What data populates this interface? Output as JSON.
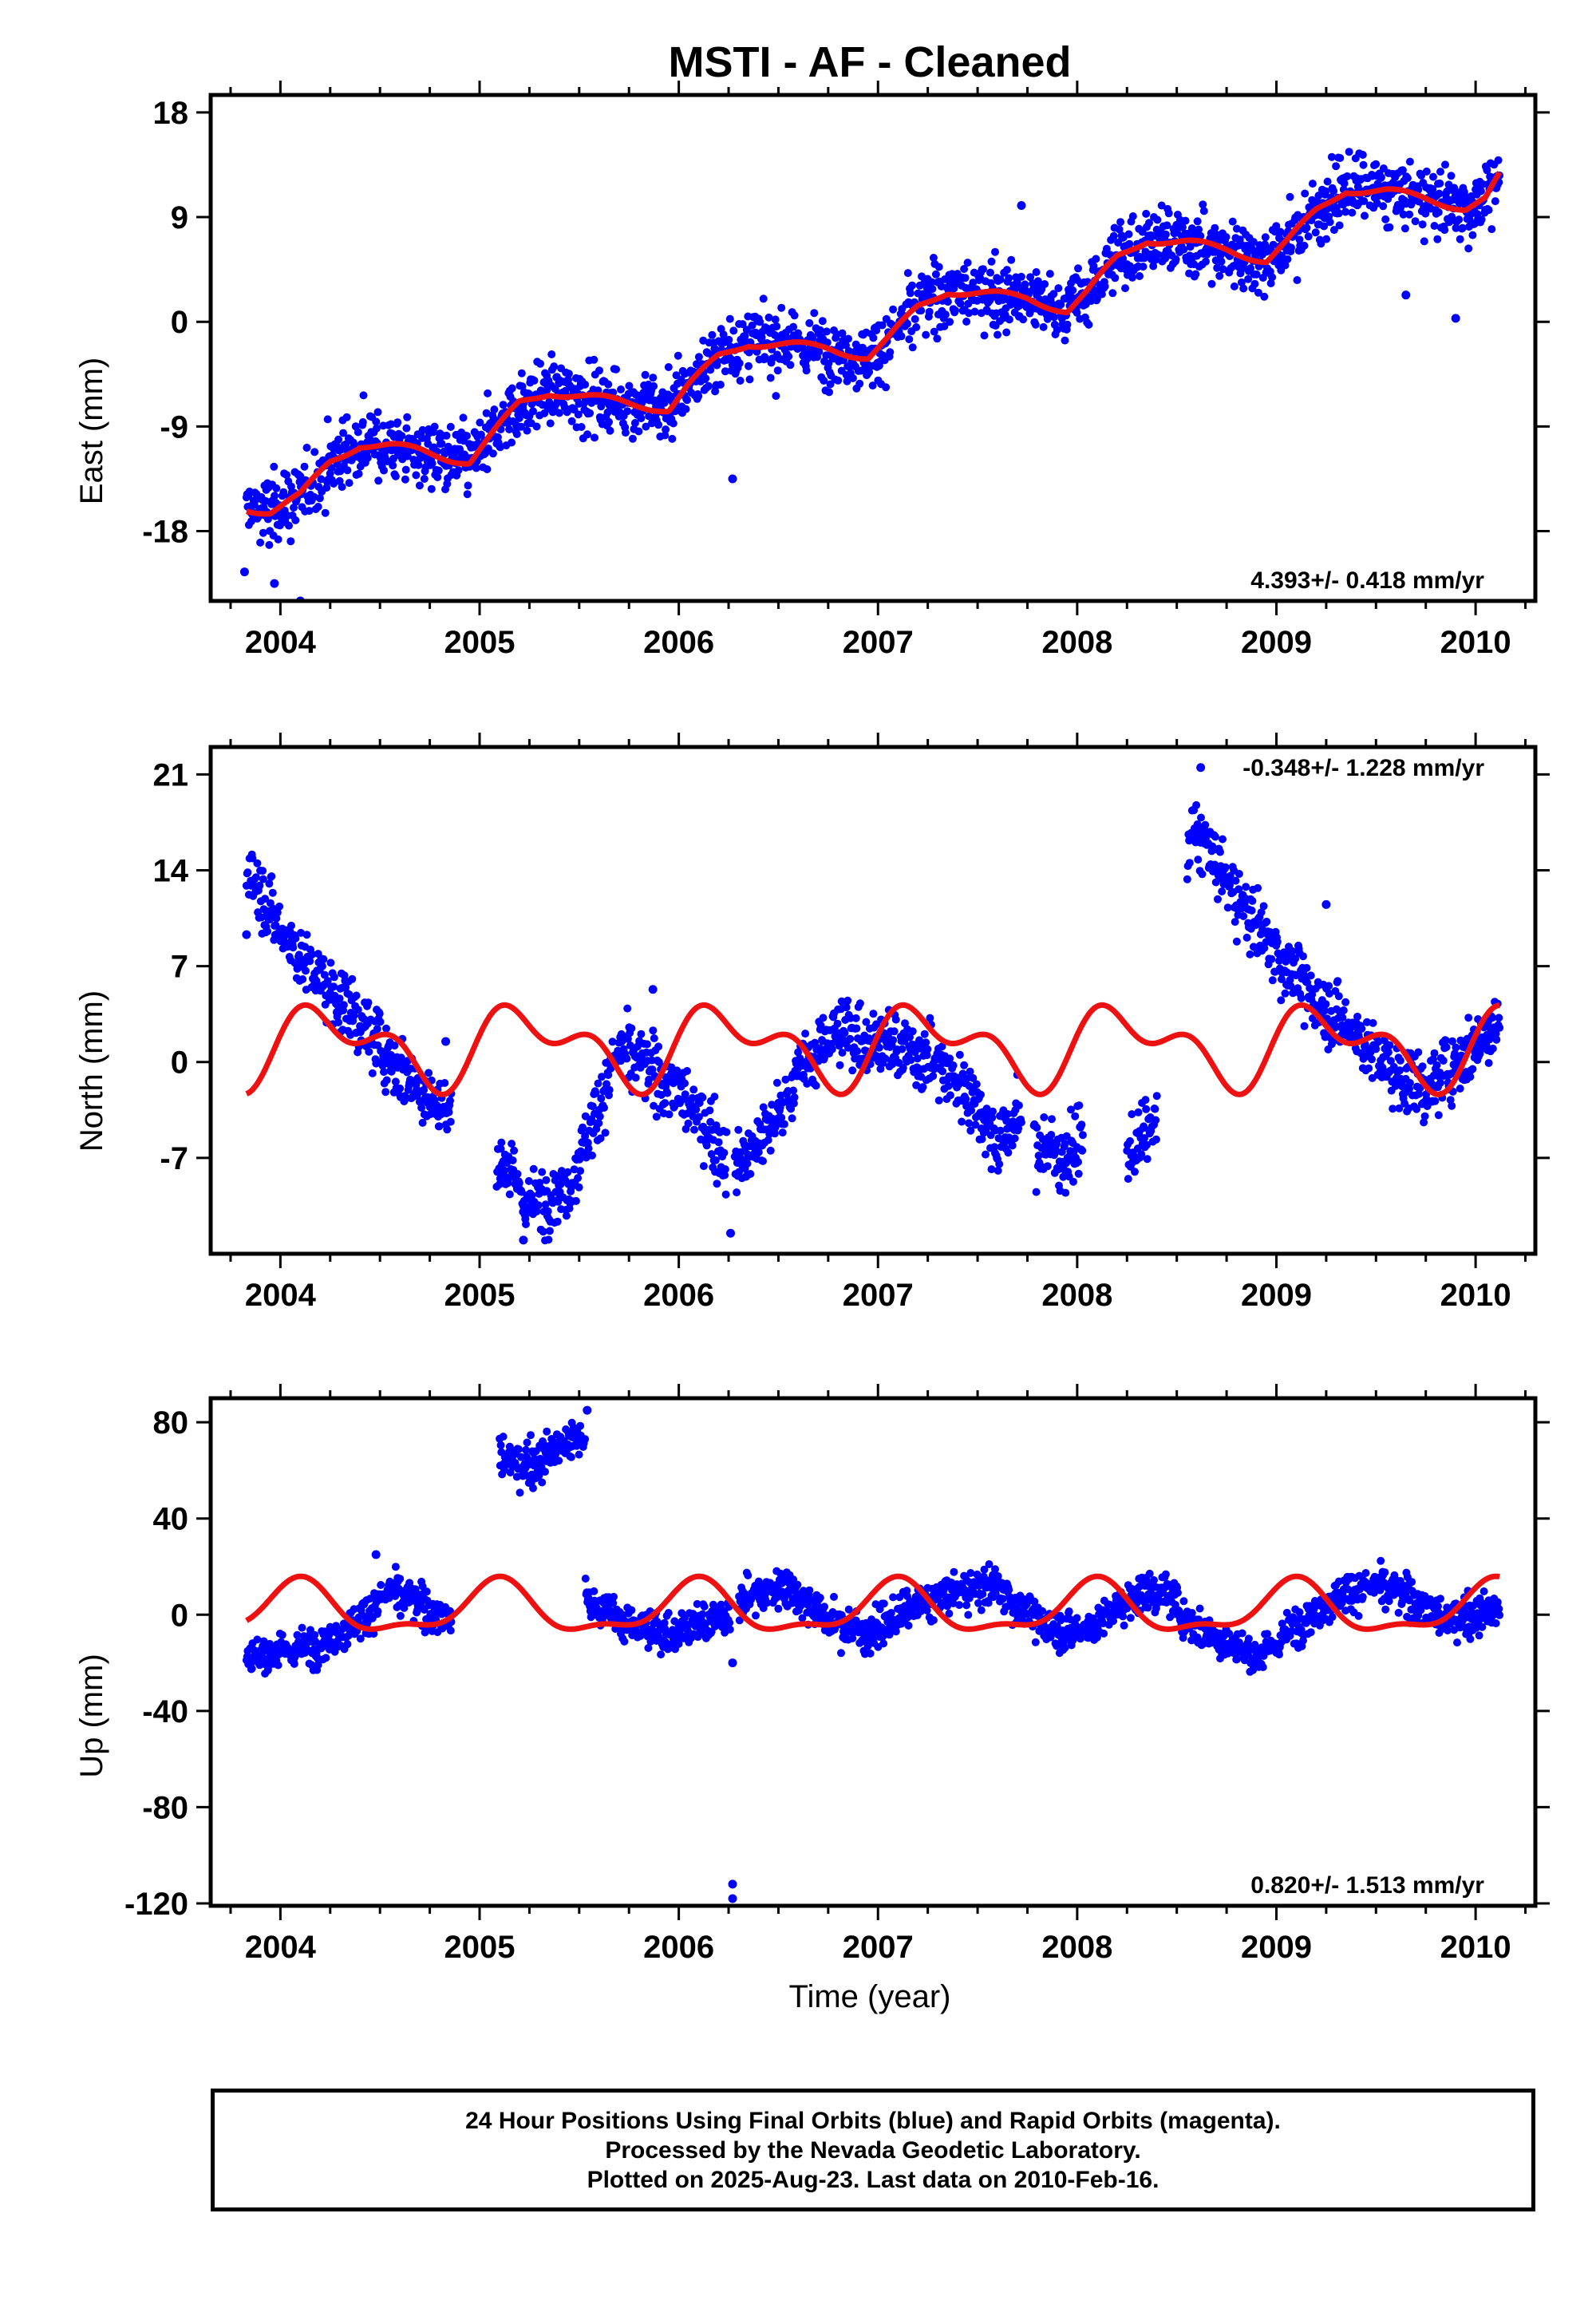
{
  "title": "MSTI  - AF - Cleaned",
  "xlabel": "Time (year)",
  "colors": {
    "points": "#0000ff",
    "fit": "#ee1111",
    "axis": "#000000"
  },
  "caption": [
    "24 Hour Positions Using Final Orbits (blue) and Rapid Orbits (magenta).",
    "Processed by the Nevada Geodetic Laboratory.",
    "Plotted on 2025-Aug-23. Last data on 2010-Feb-16."
  ],
  "chart_data": [
    {
      "type": "scatter",
      "ylabel": "East (mm)",
      "rate": "4.393+/- 0.418 mm/yr",
      "rate_position": "bottom-right",
      "xlim": [
        2003.65,
        2010.3
      ],
      "ylim": [
        -24,
        19.5
      ],
      "xticks": [
        2004,
        2005,
        2006,
        2007,
        2008,
        2009,
        2010
      ],
      "yticks": [
        18,
        9,
        0,
        -9,
        -18
      ],
      "ytick_labels": [
        "18",
        "9",
        "0",
        "-9",
        "-18"
      ],
      "grid": false,
      "data_range": [
        2003.83,
        2010.12
      ],
      "gaps": [],
      "knots": [
        [
          2003.83,
          -16
        ],
        [
          2003.95,
          -16.3
        ],
        [
          2004.1,
          -15
        ],
        [
          2004.25,
          -12
        ],
        [
          2004.4,
          -10.5
        ],
        [
          2004.55,
          -10.7
        ],
        [
          2004.7,
          -11.1
        ],
        [
          2004.85,
          -11.7
        ],
        [
          2004.95,
          -12
        ],
        [
          2005.05,
          -10
        ],
        [
          2005.2,
          -7
        ],
        [
          2005.35,
          -6
        ],
        [
          2005.55,
          -6.5
        ],
        [
          2005.75,
          -7
        ],
        [
          2005.95,
          -7.5
        ],
        [
          2006.05,
          -5.5
        ],
        [
          2006.2,
          -3
        ],
        [
          2006.35,
          -1.8
        ],
        [
          2006.55,
          -2
        ],
        [
          2006.75,
          -2.3
        ],
        [
          2006.95,
          -3
        ],
        [
          2007.05,
          -1.5
        ],
        [
          2007.2,
          1.2
        ],
        [
          2007.35,
          2.7
        ],
        [
          2007.55,
          2.4
        ],
        [
          2007.75,
          2
        ],
        [
          2007.95,
          1
        ],
        [
          2008.05,
          2.5
        ],
        [
          2008.2,
          5.5
        ],
        [
          2008.35,
          7.1
        ],
        [
          2008.55,
          6.8
        ],
        [
          2008.75,
          6.2
        ],
        [
          2008.95,
          5.3
        ],
        [
          2009.05,
          6.8
        ],
        [
          2009.2,
          9.5
        ],
        [
          2009.35,
          11.4
        ],
        [
          2009.55,
          11.2
        ],
        [
          2009.75,
          10.6
        ],
        [
          2009.95,
          9.8
        ],
        [
          2010.05,
          10.5
        ],
        [
          2010.12,
          12.5
        ]
      ],
      "noise": 1.4,
      "outliers": [
        [
          2003.82,
          -21.5
        ],
        [
          2003.97,
          -22.5
        ],
        [
          2004.1,
          -24
        ],
        [
          2006.27,
          -13.5
        ],
        [
          2007.72,
          10
        ],
        [
          2009.9,
          0.3
        ],
        [
          2009.65,
          2.3
        ]
      ]
    },
    {
      "type": "scatter",
      "ylabel": "North (mm)",
      "rate": "-0.348+/- 1.228 mm/yr",
      "rate_position": "top-right",
      "xlim": [
        2003.65,
        2010.3
      ],
      "ylim": [
        -14,
        23
      ],
      "xticks": [
        2004,
        2005,
        2006,
        2007,
        2008,
        2009,
        2010
      ],
      "yticks": [
        21,
        14,
        7,
        0,
        -7
      ],
      "ytick_labels": [
        "21",
        "14",
        "7",
        "0",
        "-7"
      ],
      "grid": false,
      "data_range": [
        2003.83,
        2010.12
      ],
      "gaps": [
        [
          2004.86,
          2005.08
        ],
        [
          2006.24,
          2006.28
        ],
        [
          2007.72,
          2007.78
        ],
        [
          2008.03,
          2008.25
        ],
        [
          2008.4,
          2008.55
        ]
      ],
      "knots": [
        [
          2003.83,
          14.5
        ],
        [
          2004.0,
          9.5
        ],
        [
          2004.2,
          6
        ],
        [
          2004.4,
          3
        ],
        [
          2004.6,
          -0.5
        ],
        [
          2004.85,
          -4
        ],
        [
          2005.1,
          -7
        ],
        [
          2005.25,
          -10.5
        ],
        [
          2005.45,
          -9
        ],
        [
          2005.6,
          -3
        ],
        [
          2005.7,
          1
        ],
        [
          2005.8,
          0
        ],
        [
          2006.0,
          -2
        ],
        [
          2006.15,
          -5
        ],
        [
          2006.28,
          -8
        ],
        [
          2006.45,
          -5
        ],
        [
          2006.6,
          -1
        ],
        [
          2006.75,
          2
        ],
        [
          2006.9,
          2
        ],
        [
          2007.1,
          1
        ],
        [
          2007.3,
          0
        ],
        [
          2007.5,
          -3
        ],
        [
          2007.6,
          -6
        ],
        [
          2007.7,
          -4
        ],
        [
          2007.8,
          -6
        ],
        [
          2007.95,
          -7
        ],
        [
          2008.05,
          -5
        ],
        [
          2008.25,
          -7
        ],
        [
          2008.42,
          -4
        ],
        [
          2008.58,
          17.5
        ],
        [
          2008.8,
          12
        ],
        [
          2009.0,
          8
        ],
        [
          2009.2,
          4.5
        ],
        [
          2009.4,
          2
        ],
        [
          2009.6,
          -1
        ],
        [
          2009.75,
          -2
        ],
        [
          2009.9,
          0
        ],
        [
          2010.12,
          3
        ]
      ],
      "noise": 1.2,
      "outliers": [
        [
          2003.83,
          9.3
        ],
        [
          2006.26,
          -12.5
        ],
        [
          2005.22,
          -13
        ],
        [
          2008.62,
          21.5
        ],
        [
          2009.25,
          11.5
        ],
        [
          2004.83,
          1.5
        ],
        [
          2005.87,
          5.3
        ]
      ]
    },
    {
      "type": "scatter",
      "ylabel": "Up (mm)",
      "rate": "0.820+/- 1.513 mm/yr",
      "rate_position": "bottom-right",
      "xlim": [
        2003.65,
        2010.3
      ],
      "ylim": [
        -121,
        90
      ],
      "xticks": [
        2004,
        2005,
        2006,
        2007,
        2008,
        2009,
        2010
      ],
      "yticks": [
        80,
        40,
        0,
        -40,
        -80,
        -120
      ],
      "ytick_labels": [
        "80",
        "40",
        "0",
        "-40",
        "-80",
        "-120"
      ],
      "grid": false,
      "data_range": [
        2003.83,
        2010.12
      ],
      "gaps": [
        [
          2004.86,
          2005.1
        ],
        [
          2006.26,
          2006.3
        ]
      ],
      "knots": [
        [
          2003.83,
          -18
        ],
        [
          2004.0,
          -16
        ],
        [
          2004.2,
          -12
        ],
        [
          2004.4,
          -2
        ],
        [
          2004.55,
          10
        ],
        [
          2004.7,
          4
        ],
        [
          2004.85,
          -2
        ],
        [
          2005.52,
          8
        ],
        [
          2005.7,
          -2
        ],
        [
          2005.9,
          -8
        ],
        [
          2006.1,
          -4
        ],
        [
          2006.2,
          -2
        ],
        [
          2006.35,
          8
        ],
        [
          2006.55,
          12
        ],
        [
          2006.75,
          -2
        ],
        [
          2006.95,
          -8
        ],
        [
          2007.2,
          4
        ],
        [
          2007.4,
          10
        ],
        [
          2007.6,
          12
        ],
        [
          2007.75,
          0
        ],
        [
          2007.95,
          -8
        ],
        [
          2008.05,
          -6
        ],
        [
          2008.3,
          8
        ],
        [
          2008.45,
          10
        ],
        [
          2008.55,
          -2
        ],
        [
          2008.75,
          -12
        ],
        [
          2008.92,
          -18
        ],
        [
          2009.1,
          -4
        ],
        [
          2009.35,
          10
        ],
        [
          2009.5,
          12
        ],
        [
          2009.7,
          6
        ],
        [
          2009.85,
          -2
        ],
        [
          2010.0,
          0
        ],
        [
          2010.12,
          2
        ]
      ],
      "noise": 4,
      "offset_segment": {
        "x0": 2005.08,
        "x1": 2005.53,
        "knots": [
          [
            2005.08,
            68
          ],
          [
            2005.2,
            62
          ],
          [
            2005.3,
            64
          ],
          [
            2005.4,
            70
          ],
          [
            2005.53,
            74
          ]
        ]
      },
      "outliers": [
        [
          2006.27,
          -112
        ],
        [
          2006.27,
          -118
        ],
        [
          2006.27,
          -20
        ],
        [
          2004.48,
          25
        ],
        [
          2005.54,
          85
        ]
      ]
    }
  ]
}
